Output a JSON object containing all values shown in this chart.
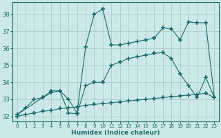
{
  "xlabel": "Humidex (Indice chaleur)",
  "background_color": "#cce8e8",
  "line_color": "#1a6b6b",
  "grid_color": "#aacccc",
  "xlim": [
    -0.5,
    23.5
  ],
  "ylim": [
    31.7,
    38.7
  ],
  "yticks": [
    32,
    33,
    34,
    35,
    36,
    37,
    38
  ],
  "xticks": [
    0,
    1,
    2,
    3,
    4,
    5,
    6,
    7,
    8,
    9,
    10,
    11,
    12,
    13,
    14,
    15,
    16,
    17,
    18,
    19,
    20,
    21,
    22,
    23
  ],
  "line1_x": [
    0,
    1,
    2,
    3,
    4,
    5,
    6,
    7,
    8,
    9,
    10,
    11,
    12,
    13,
    14,
    15,
    16,
    17,
    18,
    19,
    20,
    21,
    22,
    23
  ],
  "line1_y": [
    32.1,
    32.5,
    33.0,
    33.1,
    33.4,
    33.5,
    33.0,
    32.2,
    36.1,
    38.0,
    38.3,
    36.2,
    36.2,
    36.3,
    36.4,
    36.5,
    36.6,
    37.2,
    37.15,
    36.5,
    37.55,
    37.5,
    37.5,
    33.1
  ],
  "line2_x": [
    0,
    3,
    4,
    5,
    6,
    7,
    8,
    9,
    10,
    11,
    12,
    13,
    14,
    15,
    16,
    17,
    18,
    19,
    20,
    21,
    22,
    23
  ],
  "line2_y": [
    32.1,
    33.1,
    33.5,
    33.5,
    32.2,
    32.15,
    33.8,
    34.0,
    34.0,
    35.0,
    35.2,
    35.4,
    35.5,
    35.6,
    35.7,
    35.75,
    35.4,
    34.5,
    33.8,
    33.1,
    34.3,
    33.1
  ],
  "line3_x": [
    0,
    1,
    2,
    3,
    4,
    5,
    6,
    7,
    8,
    9,
    10,
    11,
    12,
    13,
    14,
    15,
    16,
    17,
    18,
    19,
    20,
    21,
    22,
    23
  ],
  "line3_y": [
    32.0,
    32.1,
    32.2,
    32.3,
    32.35,
    32.45,
    32.5,
    32.55,
    32.65,
    32.7,
    32.75,
    32.8,
    32.85,
    32.9,
    32.95,
    33.0,
    33.05,
    33.1,
    33.15,
    33.2,
    33.25,
    33.3,
    33.35,
    33.1
  ]
}
